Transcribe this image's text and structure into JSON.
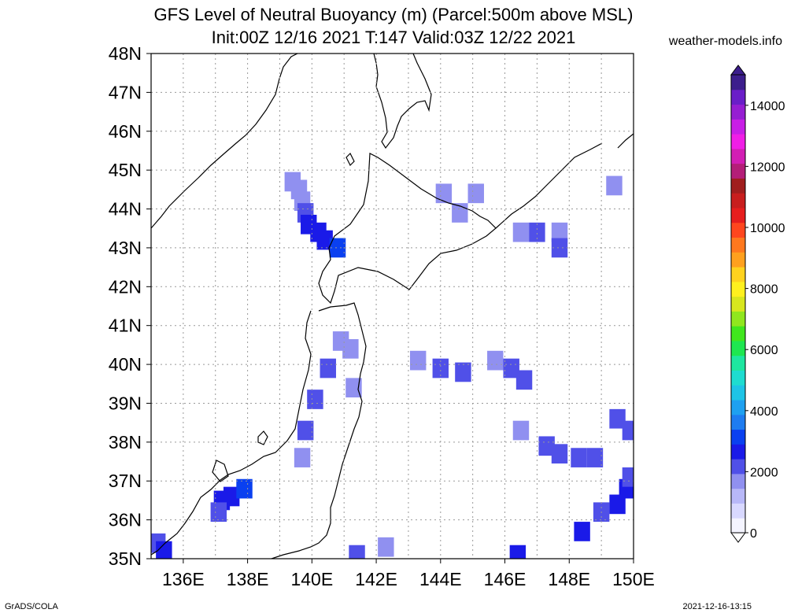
{
  "title_line1": "GFS Level of Neutral Buoyancy (m) (Parcel:500m above MSL)",
  "title_line2": "Init:00Z 12/16 2021 T:147 Valid:03Z 12/22 2021",
  "site": "weather-models.info",
  "footer_left": "GrADS/COLA",
  "footer_right": "2021-12-16-13:15",
  "lat_labels": [
    "48N",
    "47N",
    "46N",
    "45N",
    "44N",
    "43N",
    "42N",
    "41N",
    "40N",
    "39N",
    "38N",
    "37N",
    "36N",
    "35N"
  ],
  "lon_labels": [
    "136E",
    "138E",
    "140E",
    "142E",
    "144E",
    "146E",
    "148E",
    "150E"
  ],
  "colorbar": {
    "labels": [
      "0",
      "2000",
      "4000",
      "6000",
      "8000",
      "10000",
      "12000",
      "14000"
    ],
    "stops": [
      "#f4f4ff",
      "#d8d8ff",
      "#b8b8f8",
      "#9090f0",
      "#5050e8",
      "#1a1ae8",
      "#0a40f0",
      "#1e7cf0",
      "#1ea0f0",
      "#1ec4e6",
      "#1edcd0",
      "#1ee6a0",
      "#1ee650",
      "#40e61e",
      "#90e61e",
      "#d8e61e",
      "#fff01e",
      "#ffd21e",
      "#ffa01e",
      "#ff781e",
      "#ff461e",
      "#e61e1e",
      "#c81e1e",
      "#a01e1e",
      "#b41e78",
      "#d21eb4",
      "#f01ee6",
      "#c81ee6",
      "#961ed2",
      "#6a1ec8",
      "#3c1e8c"
    ]
  },
  "map_data": {
    "extent": {
      "lon": [
        135,
        150
      ],
      "lat": [
        35,
        48
      ]
    },
    "grid_step_deg": 0.5,
    "cells": [
      {
        "lon": 139.4,
        "lat": 44.7,
        "v": 1800
      },
      {
        "lon": 139.6,
        "lat": 44.5,
        "v": 1900
      },
      {
        "lon": 139.7,
        "lat": 44.2,
        "v": 1800
      },
      {
        "lon": 139.8,
        "lat": 43.9,
        "v": 2300
      },
      {
        "lon": 139.9,
        "lat": 43.6,
        "v": 2700
      },
      {
        "lon": 140.2,
        "lat": 43.4,
        "v": 2800
      },
      {
        "lon": 140.4,
        "lat": 43.2,
        "v": 2900
      },
      {
        "lon": 140.8,
        "lat": 43.0,
        "v": 3200
      },
      {
        "lon": 144.1,
        "lat": 44.4,
        "v": 1600
      },
      {
        "lon": 145.1,
        "lat": 44.4,
        "v": 1700
      },
      {
        "lon": 144.6,
        "lat": 43.9,
        "v": 1800
      },
      {
        "lon": 146.5,
        "lat": 43.4,
        "v": 1900
      },
      {
        "lon": 147.0,
        "lat": 43.4,
        "v": 2000
      },
      {
        "lon": 147.7,
        "lat": 43.4,
        "v": 1900
      },
      {
        "lon": 147.7,
        "lat": 43.0,
        "v": 2000
      },
      {
        "lon": 149.4,
        "lat": 44.6,
        "v": 1800
      },
      {
        "lon": 140.9,
        "lat": 40.6,
        "v": 1900
      },
      {
        "lon": 141.2,
        "lat": 40.4,
        "v": 1900
      },
      {
        "lon": 140.5,
        "lat": 39.9,
        "v": 2200
      },
      {
        "lon": 141.3,
        "lat": 39.4,
        "v": 1900
      },
      {
        "lon": 140.1,
        "lat": 39.1,
        "v": 2000
      },
      {
        "lon": 143.3,
        "lat": 40.1,
        "v": 1900
      },
      {
        "lon": 144.0,
        "lat": 39.9,
        "v": 2100
      },
      {
        "lon": 144.7,
        "lat": 39.8,
        "v": 2200
      },
      {
        "lon": 145.7,
        "lat": 40.1,
        "v": 1900
      },
      {
        "lon": 146.2,
        "lat": 39.9,
        "v": 2000
      },
      {
        "lon": 146.6,
        "lat": 39.6,
        "v": 2000
      },
      {
        "lon": 139.8,
        "lat": 38.3,
        "v": 2000
      },
      {
        "lon": 139.7,
        "lat": 37.6,
        "v": 1800
      },
      {
        "lon": 146.5,
        "lat": 38.3,
        "v": 1900
      },
      {
        "lon": 147.3,
        "lat": 37.9,
        "v": 2200
      },
      {
        "lon": 147.7,
        "lat": 37.7,
        "v": 2100
      },
      {
        "lon": 148.3,
        "lat": 37.6,
        "v": 2200
      },
      {
        "lon": 148.8,
        "lat": 37.6,
        "v": 2000
      },
      {
        "lon": 149.9,
        "lat": 38.3,
        "v": 2300
      },
      {
        "lon": 149.5,
        "lat": 38.6,
        "v": 2100
      },
      {
        "lon": 137.2,
        "lat": 36.5,
        "v": 2700
      },
      {
        "lon": 137.5,
        "lat": 36.6,
        "v": 2500
      },
      {
        "lon": 137.9,
        "lat": 36.8,
        "v": 3000
      },
      {
        "lon": 137.1,
        "lat": 36.2,
        "v": 2100
      },
      {
        "lon": 135.2,
        "lat": 35.4,
        "v": 2200
      },
      {
        "lon": 135.4,
        "lat": 35.2,
        "v": 2600
      },
      {
        "lon": 141.4,
        "lat": 35.1,
        "v": 2400
      },
      {
        "lon": 142.3,
        "lat": 35.3,
        "v": 1800
      },
      {
        "lon": 146.4,
        "lat": 35.1,
        "v": 2500
      },
      {
        "lon": 148.4,
        "lat": 35.7,
        "v": 2500
      },
      {
        "lon": 149.0,
        "lat": 36.2,
        "v": 2300
      },
      {
        "lon": 149.5,
        "lat": 36.4,
        "v": 2700
      },
      {
        "lon": 149.8,
        "lat": 36.8,
        "v": 2800
      },
      {
        "lon": 149.9,
        "lat": 37.1,
        "v": 2300
      }
    ]
  }
}
